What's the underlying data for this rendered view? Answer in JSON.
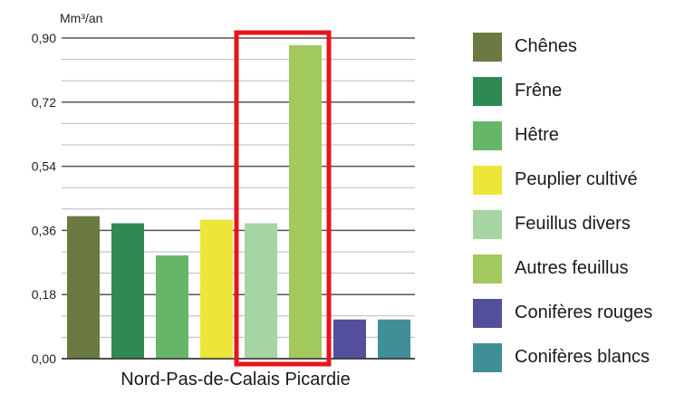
{
  "chart_data": {
    "type": "bar",
    "title": "",
    "ylabel": "Mm³/an",
    "xlabel": "",
    "categories": [
      "Nord-Pas-de-Calais Picardie"
    ],
    "series": [
      {
        "name": "Chênes",
        "values": [
          0.4
        ],
        "color": "#6b7a42"
      },
      {
        "name": "Frêne",
        "values": [
          0.38
        ],
        "color": "#2e8a52"
      },
      {
        "name": "Hêtre",
        "values": [
          0.29
        ],
        "color": "#66b66a"
      },
      {
        "name": "Peuplier cultivé",
        "values": [
          0.39
        ],
        "color": "#ece63a"
      },
      {
        "name": "Feuillus divers",
        "values": [
          0.38
        ],
        "color": "#a6d4a2"
      },
      {
        "name": "Autres feuillus",
        "values": [
          0.88
        ],
        "color": "#a2c95e"
      },
      {
        "name": "Conifères rouges",
        "values": [
          0.11
        ],
        "color": "#544f9a"
      },
      {
        "name": "Conifères blancs",
        "values": [
          0.11
        ],
        "color": "#3f8f96"
      }
    ],
    "ylim": [
      0,
      0.9
    ],
    "yticks": [
      "0,00",
      "0,18",
      "0,36",
      "0,54",
      "0,72",
      "0,90"
    ],
    "grid": true,
    "legend_position": "right",
    "highlight": {
      "series": [
        "Feuillus divers",
        "Autres feuillus"
      ],
      "color": "#e8141b"
    }
  }
}
